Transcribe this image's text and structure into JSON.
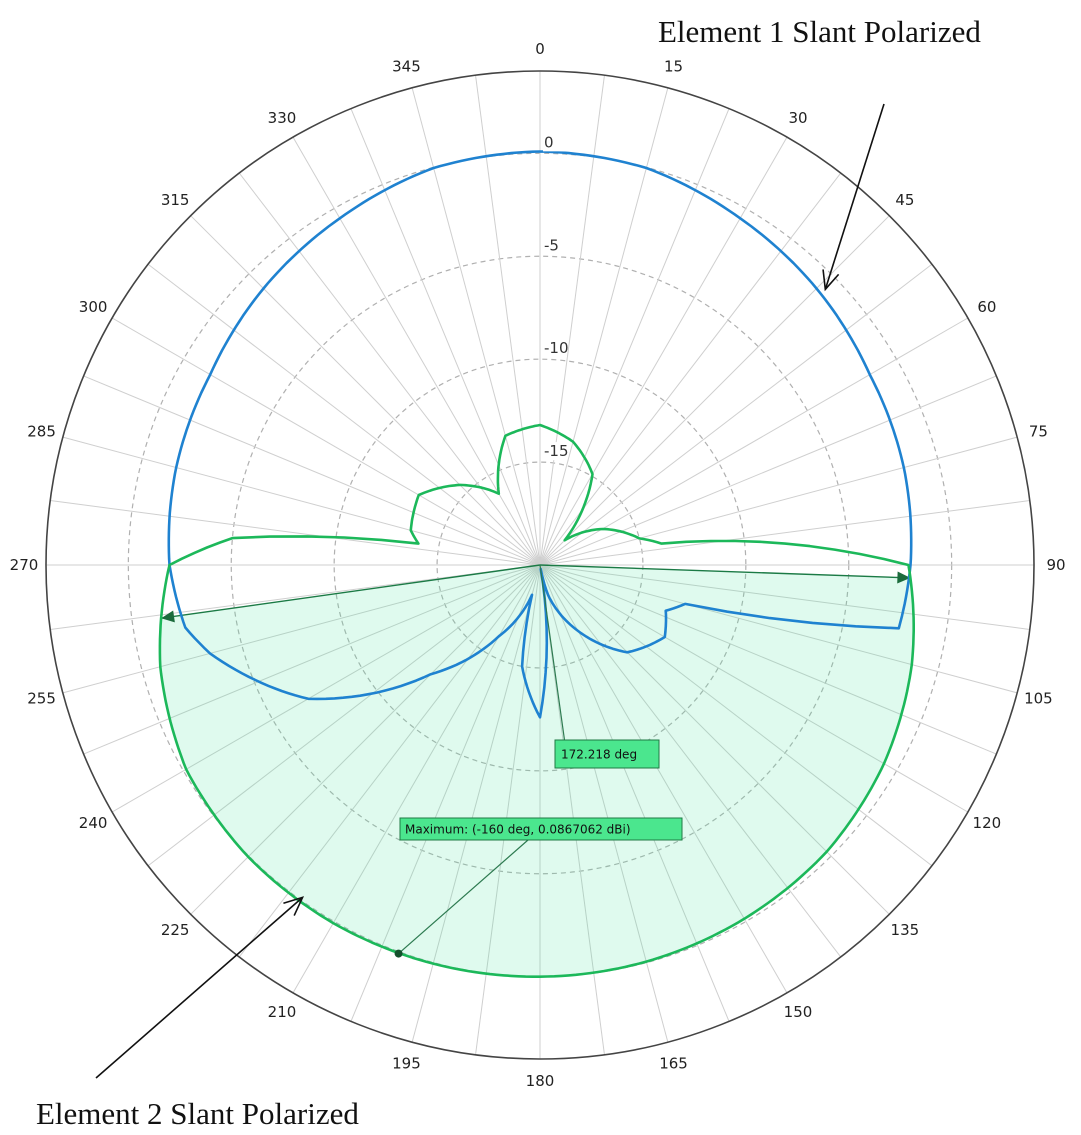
{
  "chart_data": {
    "type": "polar-line",
    "title": "",
    "angle_unit": "deg",
    "angle_zero": "top",
    "angle_direction": "clockwise",
    "angle_ticks": [
      0,
      15,
      30,
      45,
      60,
      75,
      90,
      105,
      120,
      135,
      150,
      165,
      180,
      195,
      210,
      225,
      240,
      255,
      270,
      285,
      300,
      315,
      330,
      345
    ],
    "angle_tick_labels": [
      "0",
      "15",
      "30",
      "45",
      "60",
      "75",
      "90",
      "105",
      "120",
      "135",
      "150",
      "165",
      "180",
      "195",
      "210",
      "225",
      "240",
      "255",
      "270",
      "285",
      "300",
      "315",
      "330",
      "345"
    ],
    "r_unit": "dBi",
    "r_range": [
      -20,
      4
    ],
    "r_ticks": [
      0,
      -5,
      -10,
      -15
    ],
    "r_tick_labels": [
      "0",
      "-5",
      "-10",
      "-15"
    ],
    "grid": true,
    "series": [
      {
        "color": "#1f82d0",
        "theta": [
          0,
          15,
          30,
          45,
          60,
          75,
          90,
          100,
          105,
          110,
          120,
          135,
          150,
          165,
          170,
          180,
          190,
          195,
          210,
          225,
          240,
          255,
          260,
          270,
          285,
          300,
          315,
          330,
          345,
          360
        ],
        "r": [
          0.09,
          -0.03,
          -0.55,
          -1.0,
          -1.5,
          -1.7,
          -2.0,
          -2.3,
          -12.7,
          -13.5,
          -13.0,
          -14.0,
          -16.3,
          -18.5,
          -19.8,
          -12.6,
          -15.0,
          -18.5,
          -16.0,
          -12.5,
          -7.0,
          -3.4,
          -2.5,
          -2.0,
          -1.7,
          -1.5,
          -1.0,
          -0.55,
          -0.03,
          0.09
        ]
      },
      {
        "color": "#1cb85a",
        "theta": [
          0,
          15,
          30,
          45,
          60,
          75,
          80,
          90,
          105,
          120,
          135,
          150,
          165,
          180,
          195,
          210,
          225,
          240,
          255,
          270,
          275,
          280,
          285,
          300,
          315,
          330,
          345,
          360
        ],
        "r": [
          -13.2,
          -13.8,
          -14.9,
          -18.3,
          -16.5,
          -15.0,
          -14.0,
          -2.1,
          -1.3,
          -0.7,
          -0.3,
          -0.15,
          -0.05,
          0.0,
          0.05,
          0.09,
          0.05,
          -0.15,
          -0.9,
          -2.0,
          -5.0,
          -14.0,
          -13.5,
          -13.2,
          -14.5,
          -16.0,
          -13.5,
          -13.2
        ]
      }
    ],
    "shaded_sector": {
      "color": "#1cb85a",
      "theta_range": [
        92,
        262
      ]
    },
    "markers": [
      {
        "label": "Maximum: (-160 deg, 0.0867062 dBi)",
        "theta": 200,
        "r": 0.09
      },
      {
        "label": "172.218 deg",
        "theta": 172.2,
        "r": -11
      }
    ],
    "annotations": [
      {
        "text": "Element 1 Slant Polarized",
        "target_theta": 46,
        "target_r": -1.0
      },
      {
        "text": "Element 2 Slant Polarized",
        "target_theta": 218,
        "target_r": 0.0
      }
    ]
  }
}
